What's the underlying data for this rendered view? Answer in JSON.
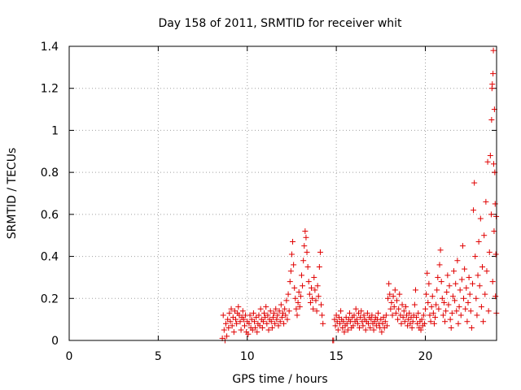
{
  "chart_data": {
    "type": "scatter",
    "title": "Day 158 of 2011, SRMTID for receiver whit",
    "xlabel": "GPS time / hours",
    "ylabel": "SRMTID / TECUs",
    "xlim": [
      0,
      24
    ],
    "ylim": [
      0,
      1.4
    ],
    "xticks": [
      0,
      5,
      10,
      15,
      20
    ],
    "xtick_labels": [
      "0",
      "5",
      "10",
      "15",
      "20"
    ],
    "yticks": [
      0,
      0.2,
      0.4,
      0.6,
      0.8,
      1.0,
      1.2,
      1.4
    ],
    "ytick_labels": [
      "0",
      "0.2",
      "0.4",
      "0.6",
      "0.8",
      "1",
      "1.2",
      "1.4"
    ],
    "grid": true,
    "marker": "+",
    "color": "#e00000",
    "series": [
      {
        "name": "SRMTID",
        "points": [
          [
            8.6,
            0.01
          ],
          [
            8.65,
            0.12
          ],
          [
            8.7,
            0.05
          ],
          [
            8.75,
            0.0
          ],
          [
            8.8,
            0.08
          ],
          [
            8.85,
            0.02
          ],
          [
            8.9,
            0.1
          ],
          [
            8.95,
            0.06
          ],
          [
            9.0,
            0.13
          ],
          [
            9.05,
            0.09
          ],
          [
            9.1,
            0.15
          ],
          [
            9.15,
            0.07
          ],
          [
            9.2,
            0.11
          ],
          [
            9.25,
            0.04
          ],
          [
            9.3,
            0.14
          ],
          [
            9.35,
            0.1
          ],
          [
            9.4,
            0.08
          ],
          [
            9.45,
            0.13
          ],
          [
            9.5,
            0.16
          ],
          [
            9.55,
            0.12
          ],
          [
            9.6,
            0.09
          ],
          [
            9.65,
            0.05
          ],
          [
            9.7,
            0.11
          ],
          [
            9.75,
            0.14
          ],
          [
            9.8,
            0.1
          ],
          [
            9.85,
            0.07
          ],
          [
            9.9,
            0.12
          ],
          [
            9.95,
            0.04
          ],
          [
            10.0,
            0.09
          ],
          [
            10.05,
            0.03
          ],
          [
            10.1,
            0.08
          ],
          [
            10.15,
            0.12
          ],
          [
            10.2,
            0.06
          ],
          [
            10.25,
            0.1
          ],
          [
            10.3,
            0.05
          ],
          [
            10.35,
            0.13
          ],
          [
            10.4,
            0.09
          ],
          [
            10.45,
            0.06
          ],
          [
            10.5,
            0.11
          ],
          [
            10.55,
            0.04
          ],
          [
            10.6,
            0.08
          ],
          [
            10.65,
            0.12
          ],
          [
            10.7,
            0.07
          ],
          [
            10.75,
            0.15
          ],
          [
            10.8,
            0.1
          ],
          [
            10.85,
            0.06
          ],
          [
            10.9,
            0.09
          ],
          [
            10.95,
            0.13
          ],
          [
            11.0,
            0.11
          ],
          [
            11.05,
            0.16
          ],
          [
            11.1,
            0.08
          ],
          [
            11.15,
            0.12
          ],
          [
            11.2,
            0.05
          ],
          [
            11.25,
            0.1
          ],
          [
            11.3,
            0.14
          ],
          [
            11.35,
            0.09
          ],
          [
            11.4,
            0.06
          ],
          [
            11.45,
            0.11
          ],
          [
            11.5,
            0.13
          ],
          [
            11.55,
            0.08
          ],
          [
            11.6,
            0.15
          ],
          [
            11.65,
            0.1
          ],
          [
            11.7,
            0.12
          ],
          [
            11.75,
            0.07
          ],
          [
            11.8,
            0.14
          ],
          [
            11.85,
            0.09
          ],
          [
            11.9,
            0.17
          ],
          [
            11.95,
            0.11
          ],
          [
            12.0,
            0.13
          ],
          [
            12.05,
            0.08
          ],
          [
            12.1,
            0.15
          ],
          [
            12.15,
            0.12
          ],
          [
            12.2,
            0.19
          ],
          [
            12.25,
            0.1
          ],
          [
            12.3,
            0.22
          ],
          [
            12.35,
            0.14
          ],
          [
            12.4,
            0.28
          ],
          [
            12.45,
            0.33
          ],
          [
            12.5,
            0.41
          ],
          [
            12.55,
            0.47
          ],
          [
            12.6,
            0.36
          ],
          [
            12.65,
            0.25
          ],
          [
            12.7,
            0.2
          ],
          [
            12.75,
            0.15
          ],
          [
            12.8,
            0.12
          ],
          [
            12.85,
            0.18
          ],
          [
            12.9,
            0.23
          ],
          [
            12.95,
            0.16
          ],
          [
            13.0,
            0.21
          ],
          [
            13.05,
            0.31
          ],
          [
            13.1,
            0.26
          ],
          [
            13.15,
            0.38
          ],
          [
            13.2,
            0.45
          ],
          [
            13.25,
            0.52
          ],
          [
            13.3,
            0.49
          ],
          [
            13.35,
            0.42
          ],
          [
            13.4,
            0.35
          ],
          [
            13.45,
            0.28
          ],
          [
            13.5,
            0.22
          ],
          [
            13.55,
            0.18
          ],
          [
            13.6,
            0.25
          ],
          [
            13.65,
            0.2
          ],
          [
            13.7,
            0.15
          ],
          [
            13.75,
            0.3
          ],
          [
            13.8,
            0.24
          ],
          [
            13.85,
            0.19
          ],
          [
            13.9,
            0.14
          ],
          [
            13.95,
            0.26
          ],
          [
            14.0,
            0.21
          ],
          [
            14.05,
            0.35
          ],
          [
            14.1,
            0.42
          ],
          [
            14.15,
            0.17
          ],
          [
            14.2,
            0.12
          ],
          [
            14.25,
            0.08
          ],
          [
            14.8,
            0.0
          ],
          [
            14.85,
            0.0
          ],
          [
            14.9,
            0.1
          ],
          [
            14.95,
            0.07
          ],
          [
            15.0,
            0.12
          ],
          [
            15.05,
            0.09
          ],
          [
            15.1,
            0.05
          ],
          [
            15.15,
            0.11
          ],
          [
            15.2,
            0.08
          ],
          [
            15.25,
            0.14
          ],
          [
            15.3,
            0.1
          ],
          [
            15.35,
            0.06
          ],
          [
            15.4,
            0.09
          ],
          [
            15.45,
            0.04
          ],
          [
            15.5,
            0.07
          ],
          [
            15.55,
            0.11
          ],
          [
            15.6,
            0.08
          ],
          [
            15.65,
            0.05
          ],
          [
            15.7,
            0.1
          ],
          [
            15.75,
            0.13
          ],
          [
            15.8,
            0.09
          ],
          [
            15.85,
            0.06
          ],
          [
            15.9,
            0.11
          ],
          [
            15.95,
            0.07
          ],
          [
            16.0,
            0.12
          ],
          [
            16.05,
            0.09
          ],
          [
            16.1,
            0.15
          ],
          [
            16.15,
            0.1
          ],
          [
            16.2,
            0.08
          ],
          [
            16.25,
            0.13
          ],
          [
            16.3,
            0.06
          ],
          [
            16.35,
            0.11
          ],
          [
            16.4,
            0.14
          ],
          [
            16.45,
            0.09
          ],
          [
            16.5,
            0.07
          ],
          [
            16.55,
            0.12
          ],
          [
            16.6,
            0.1
          ],
          [
            16.65,
            0.05
          ],
          [
            16.7,
            0.09
          ],
          [
            16.75,
            0.13
          ],
          [
            16.8,
            0.08
          ],
          [
            16.85,
            0.11
          ],
          [
            16.9,
            0.06
          ],
          [
            16.95,
            0.1
          ],
          [
            17.0,
            0.12
          ],
          [
            17.05,
            0.08
          ],
          [
            17.1,
            0.05
          ],
          [
            17.15,
            0.09
          ],
          [
            17.2,
            0.11
          ],
          [
            17.25,
            0.07
          ],
          [
            17.3,
            0.1
          ],
          [
            17.35,
            0.13
          ],
          [
            17.4,
            0.08
          ],
          [
            17.45,
            0.06
          ],
          [
            17.5,
            0.1
          ],
          [
            17.55,
            0.04
          ],
          [
            17.6,
            0.08
          ],
          [
            17.65,
            0.11
          ],
          [
            17.7,
            0.06
          ],
          [
            17.75,
            0.09
          ],
          [
            17.8,
            0.12
          ],
          [
            17.85,
            0.07
          ],
          [
            17.9,
            0.2
          ],
          [
            17.95,
            0.27
          ],
          [
            18.0,
            0.22
          ],
          [
            18.05,
            0.15
          ],
          [
            18.1,
            0.18
          ],
          [
            18.15,
            0.12
          ],
          [
            18.2,
            0.21
          ],
          [
            18.25,
            0.16
          ],
          [
            18.3,
            0.24
          ],
          [
            18.35,
            0.13
          ],
          [
            18.4,
            0.19
          ],
          [
            18.45,
            0.1
          ],
          [
            18.5,
            0.15
          ],
          [
            18.55,
            0.22
          ],
          [
            18.6,
            0.12
          ],
          [
            18.65,
            0.08
          ],
          [
            18.7,
            0.17
          ],
          [
            18.75,
            0.11
          ],
          [
            18.8,
            0.14
          ],
          [
            18.85,
            0.09
          ],
          [
            18.9,
            0.16
          ],
          [
            18.95,
            0.12
          ],
          [
            19.0,
            0.07
          ],
          [
            19.05,
            0.1
          ],
          [
            19.1,
            0.13
          ],
          [
            19.15,
            0.08
          ],
          [
            19.2,
            0.11
          ],
          [
            19.25,
            0.06
          ],
          [
            19.3,
            0.09
          ],
          [
            19.35,
            0.12
          ],
          [
            19.4,
            0.17
          ],
          [
            19.45,
            0.24
          ],
          [
            19.5,
            0.11
          ],
          [
            19.55,
            0.08
          ],
          [
            19.6,
            0.13
          ],
          [
            19.65,
            0.06
          ],
          [
            19.7,
            0.09
          ],
          [
            19.75,
            0.05
          ],
          [
            19.8,
            0.1
          ],
          [
            19.85,
            0.07
          ],
          [
            19.9,
            0.12
          ],
          [
            19.95,
            0.08
          ],
          [
            20.0,
            0.15
          ],
          [
            20.05,
            0.22
          ],
          [
            20.1,
            0.32
          ],
          [
            20.15,
            0.18
          ],
          [
            20.2,
            0.27
          ],
          [
            20.25,
            0.12
          ],
          [
            20.3,
            0.09
          ],
          [
            20.35,
            0.16
          ],
          [
            20.4,
            0.21
          ],
          [
            20.45,
            0.13
          ],
          [
            20.5,
            0.08
          ],
          [
            20.55,
            0.11
          ],
          [
            20.6,
            0.17
          ],
          [
            20.65,
            0.24
          ],
          [
            20.7,
            0.3
          ],
          [
            20.75,
            0.15
          ],
          [
            20.8,
            0.36
          ],
          [
            20.85,
            0.43
          ],
          [
            20.9,
            0.28
          ],
          [
            20.95,
            0.2
          ],
          [
            21.0,
            0.12
          ],
          [
            21.05,
            0.18
          ],
          [
            21.1,
            0.09
          ],
          [
            21.15,
            0.14
          ],
          [
            21.2,
            0.23
          ],
          [
            21.25,
            0.31
          ],
          [
            21.3,
            0.17
          ],
          [
            21.35,
            0.26
          ],
          [
            21.4,
            0.1
          ],
          [
            21.45,
            0.06
          ],
          [
            21.5,
            0.13
          ],
          [
            21.55,
            0.21
          ],
          [
            21.6,
            0.33
          ],
          [
            21.65,
            0.19
          ],
          [
            21.7,
            0.27
          ],
          [
            21.75,
            0.14
          ],
          [
            21.8,
            0.38
          ],
          [
            21.85,
            0.08
          ],
          [
            21.9,
            0.16
          ],
          [
            21.95,
            0.24
          ],
          [
            22.0,
            0.12
          ],
          [
            22.05,
            0.29
          ],
          [
            22.1,
            0.45
          ],
          [
            22.15,
            0.2
          ],
          [
            22.2,
            0.34
          ],
          [
            22.25,
            0.15
          ],
          [
            22.3,
            0.25
          ],
          [
            22.35,
            0.09
          ],
          [
            22.4,
            0.18
          ],
          [
            22.45,
            0.3
          ],
          [
            22.5,
            0.22
          ],
          [
            22.55,
            0.14
          ],
          [
            22.6,
            0.06
          ],
          [
            22.65,
            0.27
          ],
          [
            22.7,
            0.62
          ],
          [
            22.75,
            0.75
          ],
          [
            22.8,
            0.4
          ],
          [
            22.85,
            0.2
          ],
          [
            22.9,
            0.12
          ],
          [
            22.95,
            0.31
          ],
          [
            23.0,
            0.47
          ],
          [
            23.05,
            0.26
          ],
          [
            23.1,
            0.58
          ],
          [
            23.15,
            0.16
          ],
          [
            23.2,
            0.35
          ],
          [
            23.25,
            0.09
          ],
          [
            23.3,
            0.5
          ],
          [
            23.35,
            0.22
          ],
          [
            23.4,
            0.66
          ],
          [
            23.45,
            0.33
          ],
          [
            23.5,
            0.85
          ],
          [
            23.55,
            0.14
          ],
          [
            23.6,
            0.42
          ],
          [
            23.65,
            0.88
          ],
          [
            23.7,
            0.6
          ],
          [
            23.72,
            1.05
          ],
          [
            23.74,
            1.2
          ],
          [
            23.76,
            1.22
          ],
          [
            23.78,
            0.28
          ],
          [
            23.8,
            1.27
          ],
          [
            23.82,
            1.38
          ],
          [
            23.84,
            0.84
          ],
          [
            23.86,
            0.52
          ],
          [
            23.88,
            1.1
          ],
          [
            23.9,
            0.8
          ],
          [
            23.92,
            0.65
          ],
          [
            23.94,
            0.21
          ],
          [
            23.96,
            0.41
          ],
          [
            23.98,
            0.59
          ],
          [
            23.99,
            0.13
          ]
        ]
      }
    ]
  }
}
